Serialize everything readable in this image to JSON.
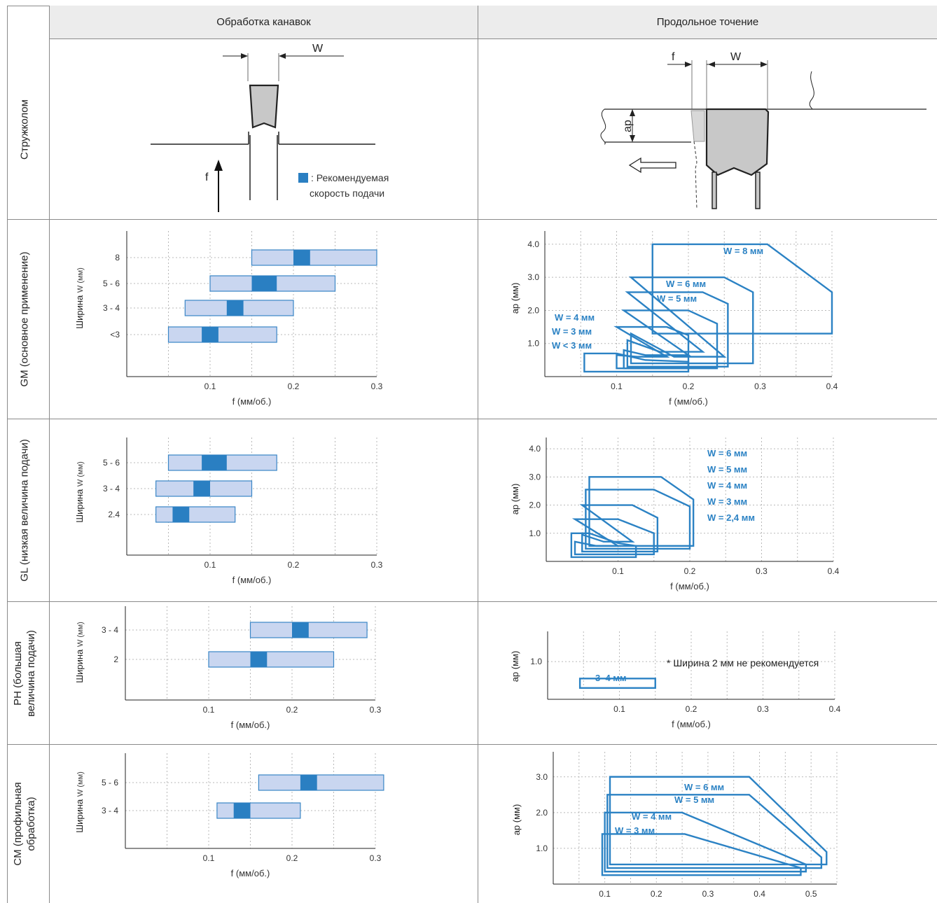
{
  "header": {
    "col1": "Обработка канавок",
    "col2": "Продольное точение"
  },
  "rows": {
    "chipbreaker": "Стружколом",
    "gm": "GM (основное применение)",
    "gl": "GL (низкая величина подачи)",
    "ph_1": "PH (большая",
    "ph_2": "величина подачи)",
    "cm_1": "CM (профильная",
    "cm_2": "обработка)"
  },
  "diagrams": {
    "grooving": {
      "w_label": "W",
      "f_label": "f"
    },
    "turning": {
      "f_label": "f",
      "w_label": "W",
      "ap_label": "ap"
    }
  },
  "legend": {
    "line1": ": Рекомендуемая",
    "line2": "скорость подачи"
  },
  "colors": {
    "bar_fill": "#c9d6f0",
    "bar_edge": "#3a86c6",
    "recommended": "#2a7fc2",
    "envelope": "#2b82c4",
    "grid": "#b8b8b8",
    "header_bg": "#ececec"
  },
  "chart_data": [
    {
      "id": "gm_grooving",
      "type": "bar",
      "ylabel_main": "Ширина",
      "ylabel_unit": "W (мм)",
      "xlabel": "f (мм/об.)",
      "xlim": [
        0,
        0.3
      ],
      "xticks": [
        "0.1",
        "0.2",
        "0.3"
      ],
      "categories": [
        "8",
        "5 - 6",
        "3 - 4",
        "<3"
      ],
      "ranges": [
        [
          0.15,
          0.3
        ],
        [
          0.1,
          0.25
        ],
        [
          0.07,
          0.2
        ],
        [
          0.05,
          0.18
        ]
      ],
      "recommended": [
        [
          0.2,
          0.22
        ],
        [
          0.15,
          0.18
        ],
        [
          0.12,
          0.14
        ],
        [
          0.09,
          0.11
        ]
      ]
    },
    {
      "id": "gl_grooving",
      "type": "bar",
      "ylabel_main": "Ширина",
      "ylabel_unit": "W (мм)",
      "xlabel": "f (мм/об.)",
      "xlim": [
        0,
        0.3
      ],
      "xticks": [
        "0.1",
        "0.2",
        "0.3"
      ],
      "categories": [
        "5 - 6",
        "3 - 4",
        "2.4"
      ],
      "ranges": [
        [
          0.05,
          0.18
        ],
        [
          0.035,
          0.15
        ],
        [
          0.035,
          0.13
        ]
      ],
      "recommended": [
        [
          0.09,
          0.12
        ],
        [
          0.08,
          0.1
        ],
        [
          0.055,
          0.075
        ]
      ]
    },
    {
      "id": "ph_grooving",
      "type": "bar",
      "ylabel_main": "Ширина",
      "ylabel_unit": "W (мм)",
      "xlabel": "f (мм/об.)",
      "xlim": [
        0,
        0.3
      ],
      "xticks": [
        "0.1",
        "0.2",
        "0.3"
      ],
      "categories": [
        "3 - 4",
        "2"
      ],
      "ranges": [
        [
          0.15,
          0.29
        ],
        [
          0.1,
          0.25
        ]
      ],
      "recommended": [
        [
          0.2,
          0.22
        ],
        [
          0.15,
          0.17
        ]
      ]
    },
    {
      "id": "cm_grooving",
      "type": "bar",
      "ylabel_main": "Ширина",
      "ylabel_unit": "W (мм)",
      "xlabel": "f (мм/об.)",
      "xlim": [
        0,
        0.3
      ],
      "xticks": [
        "0.1",
        "0.2",
        "0.3"
      ],
      "categories": [
        "5 - 6",
        "3 - 4"
      ],
      "ranges": [
        [
          0.16,
          0.31
        ],
        [
          0.11,
          0.21
        ]
      ],
      "recommended": [
        [
          0.21,
          0.23
        ],
        [
          0.13,
          0.15
        ]
      ]
    },
    {
      "id": "gm_turning",
      "type": "area",
      "ylabel": "ap (мм)",
      "xlabel": "f (мм/об.)",
      "xlim": [
        0,
        0.4
      ],
      "ylim": [
        0,
        4.4
      ],
      "xticks": [
        "0.1",
        "0.2",
        "0.3",
        "0.4"
      ],
      "yticks": [
        "1.0",
        "2.0",
        "3.0",
        "4.0"
      ],
      "series": [
        {
          "name": "W = 8 мм",
          "points": [
            [
              0.15,
              4.0
            ],
            [
              0.31,
              4.0
            ],
            [
              0.4,
              2.55
            ],
            [
              0.4,
              1.3
            ],
            [
              0.15,
              1.3
            ],
            [
              0.15,
              1.65
            ]
          ]
        },
        {
          "name": "W = 6 мм",
          "points": [
            [
              0.12,
              3.0
            ],
            [
              0.25,
              3.0
            ],
            [
              0.29,
              2.55
            ],
            [
              0.29,
              0.4
            ],
            [
              0.12,
              0.4
            ],
            [
              0.12,
              1.3
            ],
            [
              0.18,
              0.6
            ],
            [
              0.25,
              0.6
            ]
          ]
        },
        {
          "name": "W = 5 мм",
          "points": [
            [
              0.115,
              2.55
            ],
            [
              0.22,
              2.55
            ],
            [
              0.255,
              2.2
            ],
            [
              0.255,
              0.3
            ],
            [
              0.115,
              0.3
            ],
            [
              0.115,
              1.1
            ],
            [
              0.16,
              0.75
            ],
            [
              0.22,
              0.75
            ]
          ]
        },
        {
          "name": "W = 4 мм",
          "points": [
            [
              0.11,
              2.0
            ],
            [
              0.2,
              2.0
            ],
            [
              0.24,
              1.6
            ],
            [
              0.24,
              0.25
            ],
            [
              0.11,
              0.25
            ],
            [
              0.11,
              0.8
            ],
            [
              0.14,
              0.65
            ],
            [
              0.2,
              0.65
            ]
          ]
        },
        {
          "name": "W = 3 мм",
          "points": [
            [
              0.1,
              1.5
            ],
            [
              0.17,
              1.5
            ],
            [
              0.2,
              1.25
            ],
            [
              0.2,
              0.25
            ],
            [
              0.1,
              0.25
            ],
            [
              0.1,
              0.65
            ],
            [
              0.13,
              0.6
            ],
            [
              0.17,
              0.6
            ]
          ]
        },
        {
          "name": "W < 3 мм",
          "points": [
            [
              0.055,
              0.7
            ],
            [
              0.1,
              0.7
            ],
            [
              0.14,
              0.5
            ],
            [
              0.2,
              0.45
            ],
            [
              0.2,
              0.15
            ],
            [
              0.055,
              0.15
            ]
          ]
        }
      ]
    },
    {
      "id": "gl_turning",
      "type": "area",
      "ylabel": "ap (мм)",
      "xlabel": "f (мм/об.)",
      "xlim": [
        0,
        0.4
      ],
      "ylim": [
        0,
        4.4
      ],
      "xticks": [
        "0.1",
        "0.2",
        "0.3",
        "0.4"
      ],
      "yticks": [
        "1.0",
        "2.0",
        "3.0",
        "4.0"
      ],
      "series": [
        {
          "name": "W = 6 мм",
          "points": [
            [
              0.06,
              3.0
            ],
            [
              0.16,
              3.0
            ],
            [
              0.205,
              2.2
            ],
            [
              0.205,
              0.55
            ],
            [
              0.06,
              0.55
            ]
          ]
        },
        {
          "name": "W = 5 мм",
          "points": [
            [
              0.055,
              2.55
            ],
            [
              0.15,
              2.55
            ],
            [
              0.2,
              1.95
            ],
            [
              0.2,
              0.45
            ],
            [
              0.055,
              0.45
            ]
          ]
        },
        {
          "name": "W = 4 мм",
          "points": [
            [
              0.05,
              2.0
            ],
            [
              0.12,
              2.0
            ],
            [
              0.155,
              1.55
            ],
            [
              0.155,
              0.35
            ],
            [
              0.05,
              0.35
            ],
            [
              0.05,
              0.95
            ],
            [
              0.08,
              0.7
            ],
            [
              0.12,
              0.7
            ]
          ]
        },
        {
          "name": "W = 3 мм",
          "points": [
            [
              0.04,
              1.5
            ],
            [
              0.1,
              1.5
            ],
            [
              0.15,
              1.0
            ],
            [
              0.15,
              0.25
            ],
            [
              0.04,
              0.25
            ],
            [
              0.04,
              0.7
            ],
            [
              0.07,
              0.55
            ],
            [
              0.1,
              0.55
            ]
          ]
        },
        {
          "name": "W = 2,4 мм",
          "points": [
            [
              0.035,
              1.0
            ],
            [
              0.06,
              1.0
            ],
            [
              0.1,
              0.65
            ],
            [
              0.125,
              0.55
            ],
            [
              0.125,
              0.15
            ],
            [
              0.035,
              0.15
            ]
          ]
        }
      ]
    },
    {
      "id": "ph_turning",
      "type": "area",
      "ylabel": "ap (мм)",
      "xlabel": "f (мм/об.)",
      "xlim": [
        0,
        0.4
      ],
      "ylim": [
        0,
        1.8
      ],
      "xticks": [
        "0.1",
        "0.2",
        "0.3",
        "0.4"
      ],
      "yticks": [
        "1.0"
      ],
      "note": "* Ширина 2 мм не рекомендуется",
      "series": [
        {
          "name": "3–4 мм",
          "points": [
            [
              0.045,
              0.55
            ],
            [
              0.15,
              0.55
            ],
            [
              0.15,
              0.3
            ],
            [
              0.045,
              0.3
            ]
          ]
        }
      ]
    },
    {
      "id": "cm_turning",
      "type": "area",
      "ylabel": "ap (мм)",
      "xlabel": "f (мм/об.)",
      "xlim": [
        0,
        0.55
      ],
      "ylim": [
        0,
        3.7
      ],
      "xticks": [
        "0.1",
        "0.2",
        "0.3",
        "0.4",
        "0.5"
      ],
      "yticks": [
        "1.0",
        "2.0",
        "3.0"
      ],
      "series": [
        {
          "name": "W = 6 мм",
          "points": [
            [
              0.11,
              3.0
            ],
            [
              0.38,
              3.0
            ],
            [
              0.53,
              0.9
            ],
            [
              0.53,
              0.55
            ],
            [
              0.11,
              0.55
            ]
          ]
        },
        {
          "name": "W = 5 мм",
          "points": [
            [
              0.105,
              2.5
            ],
            [
              0.38,
              2.5
            ],
            [
              0.52,
              0.75
            ],
            [
              0.52,
              0.45
            ],
            [
              0.105,
              0.45
            ]
          ]
        },
        {
          "name": "W = 4 мм",
          "points": [
            [
              0.1,
              2.0
            ],
            [
              0.25,
              2.0
            ],
            [
              0.49,
              0.55
            ],
            [
              0.49,
              0.35
            ],
            [
              0.1,
              0.35
            ]
          ]
        },
        {
          "name": "W = 3 мм",
          "points": [
            [
              0.095,
              1.4
            ],
            [
              0.255,
              1.4
            ],
            [
              0.48,
              0.45
            ],
            [
              0.48,
              0.25
            ],
            [
              0.095,
              0.25
            ]
          ]
        }
      ]
    }
  ]
}
